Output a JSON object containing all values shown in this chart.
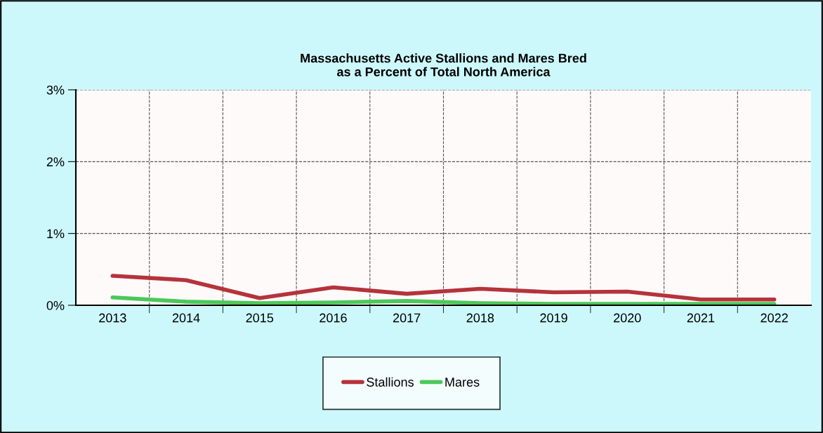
{
  "chart_data": {
    "type": "line",
    "title": "Massachusetts Active Stallions and Mares Bred\nas a Percent of Total North America",
    "categories": [
      "2013",
      "2014",
      "2015",
      "2016",
      "2017",
      "2018",
      "2019",
      "2020",
      "2021",
      "2022"
    ],
    "series": [
      {
        "name": "Stallions",
        "color": "#b5333b",
        "values": [
          0.41,
          0.35,
          0.1,
          0.25,
          0.16,
          0.23,
          0.18,
          0.19,
          0.08,
          0.08
        ]
      },
      {
        "name": "Mares",
        "color": "#4cc85a",
        "values": [
          0.11,
          0.05,
          0.03,
          0.04,
          0.06,
          0.03,
          0.02,
          0.02,
          0.02,
          0.02
        ]
      }
    ],
    "ylim": [
      0,
      3
    ],
    "yticks": [
      {
        "value": 0,
        "label": "0%"
      },
      {
        "value": 1,
        "label": "1%"
      },
      {
        "value": 2,
        "label": "2%"
      },
      {
        "value": 3,
        "label": "3%"
      }
    ],
    "grid": true,
    "legend": "bottom",
    "marker": "none",
    "line_style": "solid"
  }
}
